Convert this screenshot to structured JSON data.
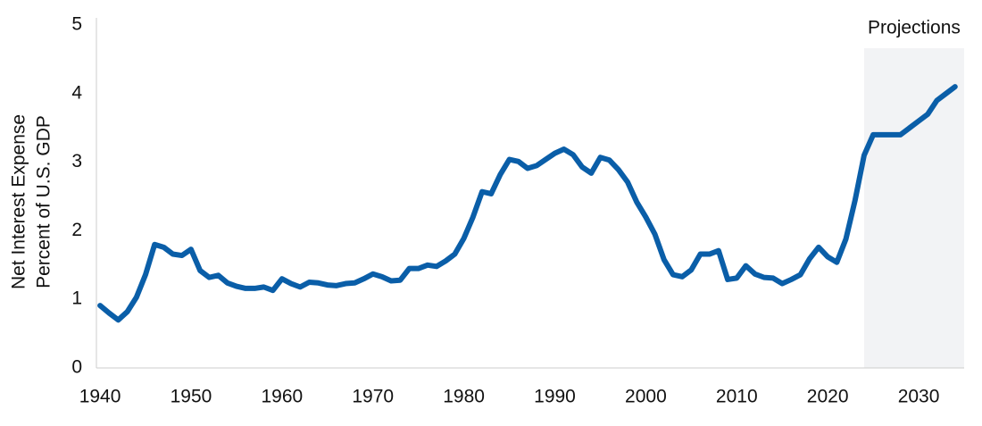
{
  "chart_data": {
    "type": "line",
    "y_label": [
      "Net Interest Expense",
      "Percent of U.S. GDP"
    ],
    "annotation": "Projections",
    "projection_start": 2024,
    "x": [
      1940,
      1941,
      1942,
      1943,
      1944,
      1945,
      1946,
      1947,
      1948,
      1949,
      1950,
      1951,
      1952,
      1953,
      1954,
      1955,
      1956,
      1957,
      1958,
      1959,
      1960,
      1961,
      1962,
      1963,
      1964,
      1965,
      1966,
      1967,
      1968,
      1969,
      1970,
      1971,
      1972,
      1973,
      1974,
      1975,
      1976,
      1977,
      1978,
      1979,
      1980,
      1981,
      1982,
      1983,
      1984,
      1985,
      1986,
      1987,
      1988,
      1989,
      1990,
      1991,
      1992,
      1993,
      1994,
      1995,
      1996,
      1997,
      1998,
      1999,
      2000,
      2001,
      2002,
      2003,
      2004,
      2005,
      2006,
      2007,
      2008,
      2009,
      2010,
      2011,
      2012,
      2013,
      2014,
      2015,
      2016,
      2017,
      2018,
      2019,
      2020,
      2021,
      2022,
      2023,
      2024,
      2025,
      2026,
      2027,
      2028,
      2029,
      2030,
      2031,
      2032,
      2033,
      2034
    ],
    "series": [
      {
        "color": "#0a5ea8",
        "values": [
          0.91,
          0.8,
          0.7,
          0.82,
          1.03,
          1.36,
          1.8,
          1.76,
          1.66,
          1.64,
          1.73,
          1.42,
          1.32,
          1.35,
          1.24,
          1.19,
          1.16,
          1.16,
          1.18,
          1.13,
          1.3,
          1.23,
          1.18,
          1.25,
          1.24,
          1.21,
          1.2,
          1.23,
          1.24,
          1.3,
          1.37,
          1.33,
          1.27,
          1.28,
          1.45,
          1.45,
          1.5,
          1.48,
          1.56,
          1.66,
          1.89,
          2.2,
          2.57,
          2.54,
          2.82,
          3.04,
          3.01,
          2.91,
          2.95,
          3.04,
          3.13,
          3.19,
          3.11,
          2.93,
          2.84,
          3.07,
          3.03,
          2.89,
          2.71,
          2.42,
          2.2,
          1.95,
          1.58,
          1.36,
          1.33,
          1.43,
          1.66,
          1.66,
          1.71,
          1.29,
          1.31,
          1.49,
          1.37,
          1.32,
          1.31,
          1.23,
          1.29,
          1.36,
          1.59,
          1.76,
          1.62,
          1.54,
          1.88,
          2.44,
          3.1,
          3.4,
          3.4,
          3.4,
          3.4,
          3.5,
          3.6,
          3.7,
          3.9,
          4.0,
          4.1
        ]
      }
    ],
    "xlim": [
      1939.6,
      2035
    ],
    "xticks": [
      1940,
      1950,
      1960,
      1970,
      1980,
      1990,
      2000,
      2010,
      2020,
      2030
    ],
    "ylim": [
      0,
      5
    ],
    "yticks": [
      0,
      1,
      2,
      3,
      4,
      5
    ],
    "grid": false
  }
}
